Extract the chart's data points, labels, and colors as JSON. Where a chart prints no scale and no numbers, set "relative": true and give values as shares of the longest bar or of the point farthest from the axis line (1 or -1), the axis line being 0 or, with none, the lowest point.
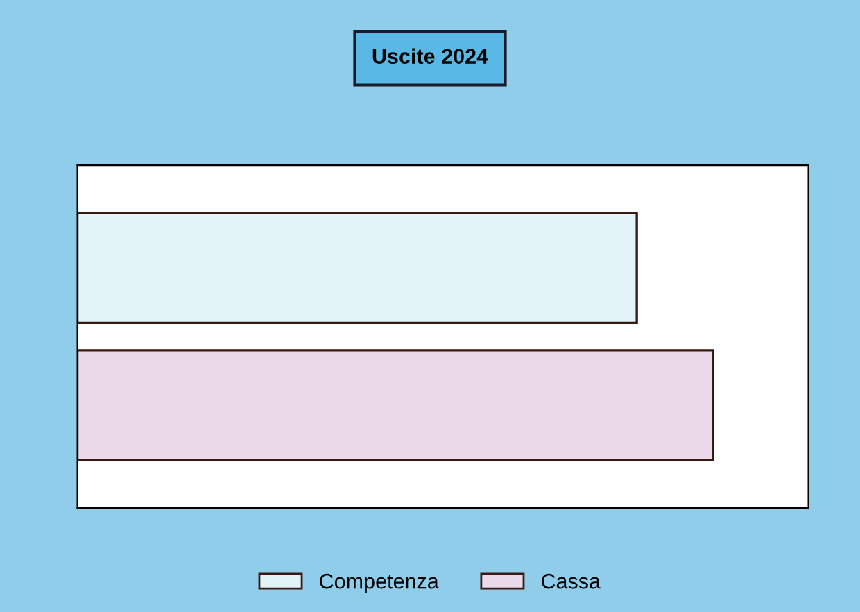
{
  "chart_data": {
    "type": "bar",
    "title": "Uscite 2024",
    "orientation": "horizontal",
    "relative": true,
    "categories": [
      null
    ],
    "series": [
      {
        "name": "Competenza",
        "color": "#e2f4f8",
        "values": [
          0.88
        ]
      },
      {
        "name": "Cassa",
        "color": "#eadaea",
        "values": [
          1
        ]
      }
    ],
    "legend": "bottom"
  }
}
